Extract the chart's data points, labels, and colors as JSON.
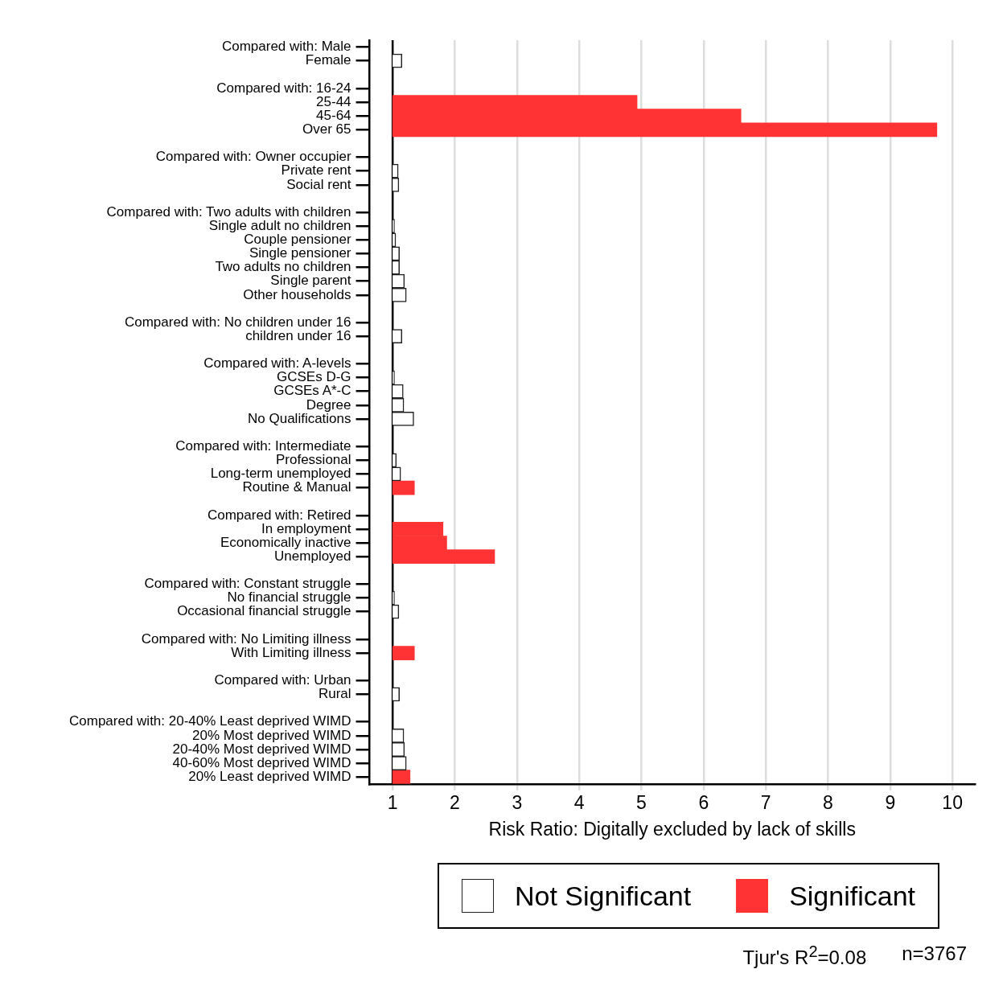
{
  "chart_data": {
    "type": "bar",
    "orientation": "horizontal",
    "xlabel": "Risk Ratio: Digitally excluded by lack of skills",
    "categories": [
      "Compared with: Male",
      "Female",
      null,
      "Compared with: 16-24",
      "25-44",
      "45-64",
      "Over 65",
      null,
      "Compared with: Owner occupier",
      "Private rent",
      "Social rent",
      null,
      "Compared with: Two adults with children",
      "Single adult no children",
      "Couple pensioner",
      "Single pensioner",
      "Two adults no children",
      "Single parent",
      "Other households",
      null,
      "Compared with: No children under 16",
      "children under 16",
      null,
      "Compared with: A-levels",
      "GCSEs D-G",
      "GCSEs A*-C",
      "Degree",
      "No Qualifications",
      null,
      "Compared with: Intermediate",
      "Professional",
      "Long-term unemployed",
      "Routine & Manual",
      null,
      "Compared with: Retired",
      "In employment",
      "Economically inactive",
      "Unemployed",
      null,
      "Compared with: Constant struggle",
      "No financial struggle",
      "Occasional financial struggle",
      null,
      "Compared with: No Limiting illness",
      "With Limiting illness",
      null,
      "Compared with: Urban",
      "Rural",
      null,
      "Compared with: 20-40% Least deprived WIMD",
      "20% Most deprived WIMD",
      "20-40% Most deprived WIMD",
      "40-60% Most deprived WIMD",
      "20% Least deprived WIMD"
    ],
    "series": [
      {
        "name": "Not Significant",
        "color": "#ffffff",
        "base": [
          null,
          1,
          null,
          null,
          null,
          null,
          null,
          null,
          null,
          1,
          1,
          null,
          null,
          1,
          1,
          1,
          1,
          1,
          1,
          null,
          null,
          1,
          null,
          null,
          1,
          1,
          1,
          1,
          null,
          null,
          1,
          1,
          null,
          null,
          null,
          null,
          null,
          null,
          null,
          null,
          1,
          1,
          null,
          null,
          null,
          null,
          null,
          1,
          null,
          null,
          1,
          1,
          1,
          null
        ],
        "values": [
          null,
          0.15,
          null,
          null,
          null,
          null,
          null,
          null,
          null,
          0.09,
          0.1,
          null,
          null,
          0.03,
          0.05,
          0.11,
          0.11,
          0.19,
          0.22,
          null,
          null,
          0.15,
          null,
          null,
          0.03,
          0.17,
          0.18,
          0.34,
          null,
          null,
          0.06,
          0.13,
          null,
          null,
          null,
          null,
          null,
          null,
          null,
          null,
          0.03,
          0.1,
          null,
          null,
          null,
          null,
          null,
          0.11,
          null,
          null,
          0.18,
          0.19,
          0.22,
          null
        ]
      },
      {
        "name": "Significant",
        "color": "#ff3333",
        "base": [
          null,
          null,
          null,
          null,
          1,
          1,
          1,
          null,
          null,
          null,
          null,
          null,
          null,
          null,
          null,
          null,
          null,
          null,
          null,
          null,
          null,
          null,
          null,
          null,
          null,
          null,
          null,
          null,
          null,
          null,
          null,
          null,
          1,
          null,
          null,
          1,
          1,
          1,
          null,
          null,
          null,
          null,
          null,
          null,
          1,
          null,
          null,
          null,
          null,
          null,
          null,
          null,
          null,
          1
        ],
        "values": [
          null,
          null,
          null,
          null,
          3.93,
          5.6,
          8.75,
          null,
          null,
          null,
          null,
          null,
          null,
          null,
          null,
          null,
          null,
          null,
          null,
          null,
          null,
          null,
          null,
          null,
          null,
          null,
          null,
          null,
          null,
          null,
          null,
          null,
          0.35,
          null,
          null,
          0.81,
          0.87,
          1.64,
          null,
          null,
          null,
          null,
          null,
          null,
          0.35,
          null,
          null,
          null,
          null,
          null,
          null,
          null,
          null,
          0.28
        ]
      }
    ],
    "xlim": [
      0.63,
      10.36
    ],
    "xticks": [
      1,
      2,
      3,
      4,
      5,
      6,
      7,
      8,
      9,
      10
    ],
    "grid": "x",
    "ref_lines": [
      {
        "axis": "x",
        "value": 1,
        "color": "#000000"
      }
    ],
    "legend": "bottom",
    "annotations": [
      "Tjur's R$^{2}$=0.08",
      "n=3767"
    ]
  }
}
